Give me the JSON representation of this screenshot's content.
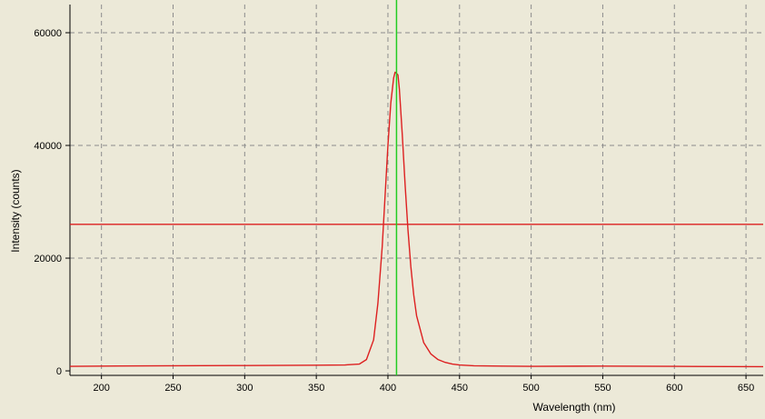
{
  "chart_data": {
    "type": "line",
    "title": "",
    "xlabel": "Wavelength (nm)",
    "ylabel": "Intensity (counts)",
    "xlim": [
      178,
      662
    ],
    "ylim": [
      -800,
      65000
    ],
    "xticks": [
      200,
      250,
      300,
      350,
      400,
      450,
      500,
      550,
      600,
      650
    ],
    "yticks": [
      0,
      20000,
      40000,
      60000
    ],
    "grid": true,
    "grid_style": "dashed",
    "background_color": "#ece9d8",
    "series": [
      {
        "color": "#dd2020",
        "x": [
          178,
          200,
          250,
          300,
          350,
          370,
          380,
          385,
          390,
          393,
          396,
          398,
          400,
          402,
          404,
          405,
          406,
          407,
          408,
          410,
          412,
          414,
          416,
          418,
          420,
          425,
          430,
          435,
          440,
          445,
          450,
          460,
          480,
          500,
          550,
          600,
          662
        ],
        "y": [
          800,
          850,
          900,
          950,
          1000,
          1050,
          1200,
          2000,
          5500,
          12000,
          22000,
          31000,
          40000,
          47500,
          52000,
          53000,
          52800,
          52500,
          50000,
          42000,
          33000,
          25000,
          18500,
          13500,
          9800,
          5000,
          3000,
          2000,
          1500,
          1200,
          1050,
          900,
          850,
          800,
          850,
          800,
          750
        ]
      }
    ],
    "threshold_line": {
      "y": 26000,
      "color": "#dd2020"
    },
    "cursor_line": {
      "x": 406,
      "color": "#22cc22"
    }
  }
}
